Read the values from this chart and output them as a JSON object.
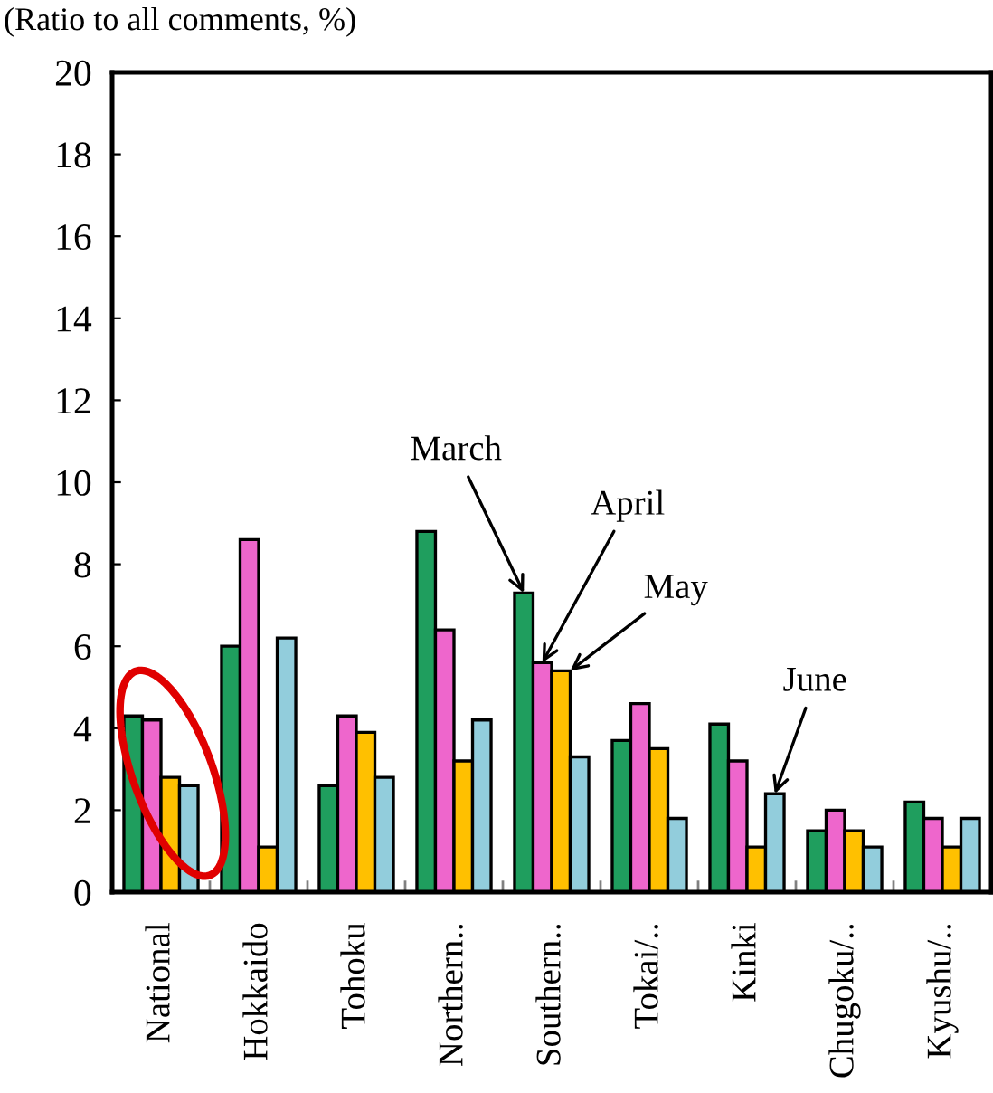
{
  "chart_data": {
    "type": "bar",
    "ylabel": "(Ratio to all comments, %)",
    "categories": [
      "National",
      "Hokkaido",
      "Tohoku",
      "Northern..",
      "Southern..",
      "Tokai/..",
      "Kinki",
      "Chugoku/..",
      "Kyushu/.."
    ],
    "series": [
      {
        "name": "March",
        "color": "#1f9e5e",
        "values": [
          4.3,
          6.0,
          2.6,
          8.8,
          7.3,
          3.7,
          4.1,
          1.5,
          2.2
        ]
      },
      {
        "name": "April",
        "color": "#ee66cc",
        "values": [
          4.2,
          8.6,
          4.3,
          6.4,
          5.6,
          4.6,
          3.2,
          2.0,
          1.8
        ]
      },
      {
        "name": "May",
        "color": "#ffc000",
        "values": [
          2.8,
          1.1,
          3.9,
          3.2,
          5.4,
          3.5,
          1.1,
          1.5,
          1.1
        ]
      },
      {
        "name": "June",
        "color": "#92cddc",
        "values": [
          2.6,
          6.2,
          2.8,
          4.2,
          3.3,
          1.8,
          2.4,
          1.1,
          1.8
        ]
      }
    ],
    "ylim": [
      0,
      20
    ],
    "yticks": [
      0,
      2,
      4,
      6,
      8,
      10,
      12,
      14,
      16,
      18,
      20
    ],
    "grid": false,
    "legend": false
  }
}
